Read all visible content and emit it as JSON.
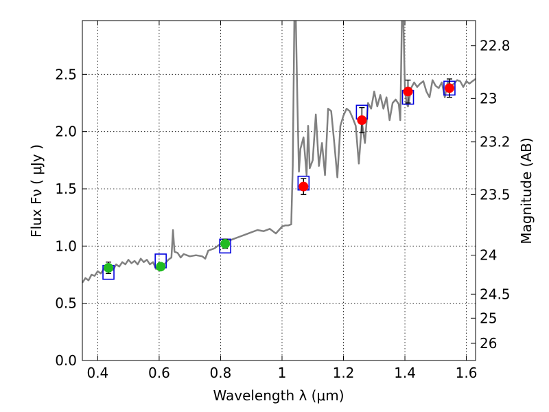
{
  "chart_data": {
    "type": "scatter",
    "title": "",
    "xlabel": "Wavelength  λ (μm)",
    "ylabel": "Flux  Fν  ( μJy )",
    "ylabel_right": "Magnitude (AB)",
    "xlim": [
      0.35,
      1.63
    ],
    "ylim": [
      0.0,
      2.97
    ],
    "grid": true,
    "x_ticks": [
      0.4,
      0.6,
      0.8,
      1.0,
      1.2,
      1.4,
      1.6
    ],
    "x_tick_labels": [
      "0.4",
      "0.6",
      "0.8",
      "1",
      "1.2",
      "1.4",
      "1.6"
    ],
    "y_ticks": [
      0.0,
      0.5,
      1.0,
      1.5,
      2.0,
      2.5
    ],
    "y_tick_labels": [
      "0.0",
      "0.5",
      "1.0",
      "1.5",
      "2.0",
      "2.5"
    ],
    "right_ticks": [
      {
        "label": "22.8",
        "flux": 2.75
      },
      {
        "label": "23",
        "flux": 2.29
      },
      {
        "label": "23.2",
        "flux": 1.91
      },
      {
        "label": "23.5",
        "flux": 1.45
      },
      {
        "label": "24",
        "flux": 0.92
      },
      {
        "label": "24.5",
        "flux": 0.58
      },
      {
        "label": "25",
        "flux": 0.37
      },
      {
        "label": "26",
        "flux": 0.15
      }
    ],
    "colors": {
      "spectrum": "#808080",
      "ground_points": "#22bb22",
      "space_points": "#ff0000",
      "model_boxes": "#0000dd",
      "error_bars": "#000000"
    },
    "spectrum": {
      "x": [
        0.35,
        0.36,
        0.37,
        0.38,
        0.39,
        0.4,
        0.41,
        0.42,
        0.43,
        0.44,
        0.45,
        0.46,
        0.47,
        0.48,
        0.49,
        0.5,
        0.51,
        0.52,
        0.53,
        0.54,
        0.55,
        0.56,
        0.57,
        0.58,
        0.59,
        0.6,
        0.61,
        0.62,
        0.63,
        0.64,
        0.645,
        0.65,
        0.66,
        0.67,
        0.68,
        0.69,
        0.7,
        0.72,
        0.74,
        0.75,
        0.76,
        0.78,
        0.8,
        0.82,
        0.84,
        0.86,
        0.88,
        0.9,
        0.92,
        0.94,
        0.96,
        0.98,
        1.0,
        1.01,
        1.02,
        1.03,
        1.035,
        1.04,
        1.045,
        1.05,
        1.055,
        1.06,
        1.07,
        1.08,
        1.085,
        1.09,
        1.1,
        1.11,
        1.12,
        1.13,
        1.14,
        1.15,
        1.16,
        1.17,
        1.18,
        1.19,
        1.2,
        1.21,
        1.22,
        1.23,
        1.24,
        1.25,
        1.26,
        1.27,
        1.28,
        1.29,
        1.3,
        1.31,
        1.32,
        1.33,
        1.34,
        1.35,
        1.36,
        1.37,
        1.38,
        1.385,
        1.39,
        1.395,
        1.4,
        1.405,
        1.41,
        1.42,
        1.43,
        1.44,
        1.45,
        1.46,
        1.47,
        1.48,
        1.49,
        1.5,
        1.51,
        1.52,
        1.53,
        1.54,
        1.55,
        1.56,
        1.57,
        1.58,
        1.59,
        1.6,
        1.61,
        1.62,
        1.63
      ],
      "y": [
        0.68,
        0.72,
        0.7,
        0.75,
        0.74,
        0.78,
        0.76,
        0.8,
        0.78,
        0.81,
        0.79,
        0.84,
        0.82,
        0.86,
        0.84,
        0.88,
        0.85,
        0.87,
        0.84,
        0.89,
        0.86,
        0.88,
        0.84,
        0.86,
        0.8,
        0.86,
        0.82,
        0.85,
        0.88,
        0.9,
        1.14,
        0.95,
        0.94,
        0.9,
        0.93,
        0.92,
        0.91,
        0.92,
        0.91,
        0.89,
        0.96,
        0.98,
        1.02,
        1.04,
        1.06,
        1.08,
        1.1,
        1.12,
        1.14,
        1.13,
        1.15,
        1.11,
        1.17,
        1.18,
        1.18,
        1.19,
        1.7,
        2.97,
        2.97,
        2.25,
        1.65,
        1.85,
        1.95,
        1.62,
        2.05,
        1.68,
        1.75,
        2.15,
        1.7,
        1.9,
        1.62,
        2.2,
        2.18,
        1.9,
        1.6,
        2.05,
        2.14,
        2.2,
        2.18,
        2.12,
        2.05,
        1.72,
        2.08,
        1.9,
        2.25,
        2.2,
        2.35,
        2.22,
        2.32,
        2.2,
        2.3,
        2.1,
        2.25,
        2.28,
        2.24,
        2.1,
        2.97,
        2.97,
        2.4,
        2.25,
        2.22,
        2.38,
        2.43,
        2.39,
        2.42,
        2.44,
        2.35,
        2.3,
        2.45,
        2.4,
        2.38,
        2.43,
        2.3,
        2.44,
        2.4,
        2.42,
        2.45,
        2.44,
        2.39,
        2.44,
        2.42,
        2.44,
        2.46
      ]
    },
    "series": [
      {
        "x": [
          0.435,
          0.605,
          0.815
        ],
        "y": [
          0.81,
          0.82,
          1.02
        ],
        "err": [
          0.05,
          0.03,
          0.04
        ]
      },
      {
        "x": [
          1.07,
          1.26,
          1.41,
          1.545
        ],
        "y": [
          1.52,
          2.1,
          2.35,
          2.38
        ],
        "err": [
          0.07,
          0.11,
          0.1,
          0.08
        ]
      }
    ],
    "model_boxes": {
      "x": [
        0.435,
        0.605,
        0.815,
        1.07,
        1.26,
        1.41,
        1.545
      ],
      "y": [
        0.77,
        0.87,
        1.0,
        1.55,
        2.17,
        2.3,
        2.38
      ]
    }
  }
}
